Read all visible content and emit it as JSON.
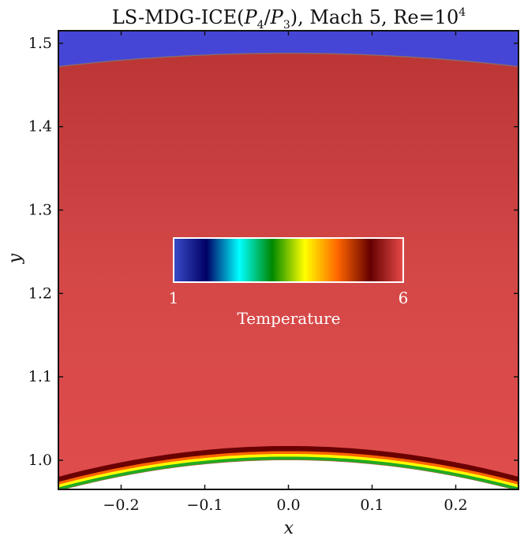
{
  "chart_data": {
    "type": "heatmap",
    "title": {
      "main": "LS-MDG-ICE(",
      "p4": "P",
      "p4_sub": "4",
      "slash": "/",
      "p3": "P",
      "p3_sub": "3",
      "rest": "), Mach 5, Re=10",
      "exp": "4"
    },
    "xlabel": "x",
    "ylabel": "y",
    "xlim": [
      -0.275,
      0.275
    ],
    "ylim": [
      0.965,
      1.515
    ],
    "xticks": [
      -0.2,
      -0.1,
      0.0,
      0.1,
      0.2
    ],
    "xtick_labels": [
      "−0.2",
      "−0.1",
      "0.0",
      "0.1",
      "0.2"
    ],
    "yticks": [
      1.0,
      1.1,
      1.2,
      1.3,
      1.4,
      1.5
    ],
    "ytick_labels": [
      "1.0",
      "1.1",
      "1.2",
      "1.3",
      "1.4",
      "1.5"
    ],
    "field": "Temperature",
    "freestream_temperature": 1,
    "shock": {
      "y_at_center": 1.488,
      "y_at_edge": 1.472
    },
    "body": {
      "y_at_center": 1.0,
      "y_at_edge": 0.963
    },
    "colorbar": {
      "label": "Temperature",
      "min": 1,
      "max": 6,
      "min_label": "1",
      "max_label": "6",
      "colors": [
        "#3b4cc8",
        "#000066",
        "#00ffff",
        "#008800",
        "#ffff00",
        "#ff6600",
        "#660000",
        "#e84a4a"
      ]
    },
    "colors": {
      "freestream": "#4646d6",
      "post_shock": "#cd3f3f",
      "boundary_layer": [
        "#6b0000",
        "#ff6600",
        "#ffff00",
        "#22aa22"
      ]
    }
  }
}
